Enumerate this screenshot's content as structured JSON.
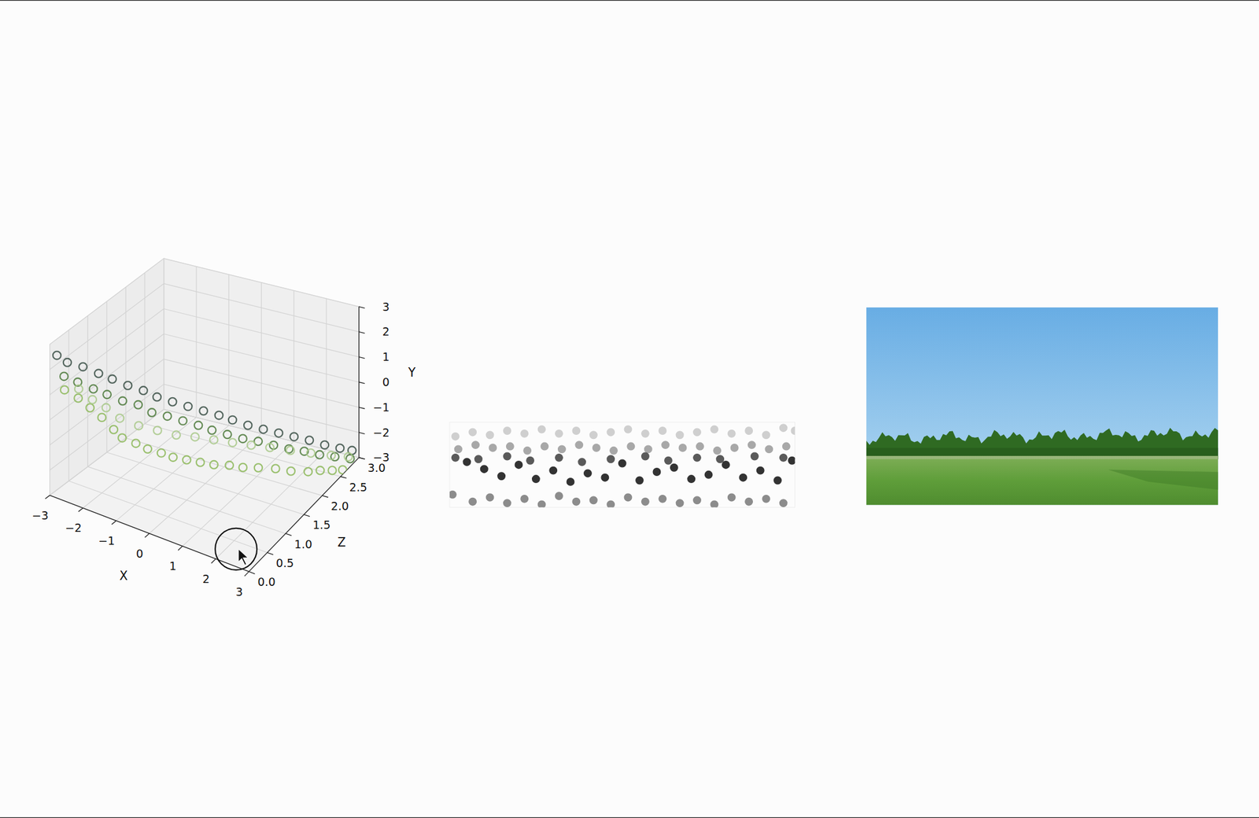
{
  "chart_data": [
    {
      "type": "scatter3d",
      "xlabel": "X",
      "ylabel": "Y",
      "zlabel": "Z",
      "xlim": [
        -3,
        3
      ],
      "ylim": [
        -3,
        3
      ],
      "zlim": [
        0,
        3
      ],
      "xticks": [
        {
          "value": -3,
          "label": "−3"
        },
        {
          "value": -2,
          "label": "−2"
        },
        {
          "value": -1,
          "label": "−1"
        },
        0,
        1,
        2,
        3
      ],
      "yticks": [
        {
          "value": -3,
          "label": "−3"
        },
        {
          "value": -2,
          "label": "−2"
        },
        {
          "value": -1,
          "label": "−1"
        },
        0,
        1,
        2,
        3
      ],
      "zticks": [
        {
          "value": 0,
          "label": "0.0"
        },
        {
          "value": 0.5,
          "label": "0.5"
        },
        {
          "value": 1,
          "label": "1.0"
        },
        {
          "value": 1.5,
          "label": "1.5"
        },
        {
          "value": 2,
          "label": "2.0"
        },
        {
          "value": 2.5,
          "label": "2.5"
        },
        {
          "value": 3,
          "label": "3.0"
        }
      ],
      "grid": true,
      "series": [
        {
          "color": "#3a4f45",
          "marker": "circle-open",
          "x": [
            -2.9,
            -2.7,
            -2.4,
            -2.1,
            -1.8,
            -1.5,
            -1.2,
            -0.9,
            -0.6,
            -0.3,
            0.0,
            0.3,
            0.6,
            0.9,
            1.2,
            1.5,
            1.8,
            2.1,
            2.4,
            2.7,
            2.9
          ],
          "y": [
            2.5,
            2.2,
            2.0,
            1.7,
            1.5,
            1.2,
            0.95,
            0.7,
            0.45,
            0.2,
            -0.05,
            -0.3,
            -0.5,
            -0.8,
            -1.05,
            -1.3,
            -1.55,
            -1.8,
            -2.1,
            -2.35,
            -2.6
          ],
          "z": [
            0.1,
            0.2,
            0.35,
            0.5,
            0.6,
            0.75,
            0.9,
            1.0,
            1.15,
            1.3,
            1.45,
            1.6,
            1.7,
            1.85,
            2.0,
            2.15,
            2.3,
            2.45,
            2.6,
            2.75,
            2.9
          ]
        },
        {
          "color": "#4d7a3c",
          "marker": "circle-open",
          "x": [
            -2.8,
            -2.5,
            -2.2,
            -1.9,
            -1.6,
            -1.3,
            -1.0,
            -0.7,
            -0.4,
            -0.1,
            0.2,
            0.5,
            0.8,
            1.1,
            1.4,
            1.7,
            2.0,
            2.3,
            2.6,
            2.9
          ],
          "y": [
            1.6,
            1.4,
            1.1,
            0.9,
            0.6,
            0.4,
            0.1,
            -0.1,
            -0.35,
            -0.6,
            -0.8,
            -1.05,
            -1.3,
            -1.5,
            -1.75,
            -2.0,
            -2.2,
            -2.45,
            -2.65,
            -2.85
          ],
          "z": [
            0.2,
            0.3,
            0.45,
            0.55,
            0.7,
            0.85,
            0.95,
            1.1,
            1.25,
            1.4,
            1.5,
            1.65,
            1.8,
            1.95,
            2.1,
            2.25,
            2.4,
            2.55,
            2.7,
            2.85
          ]
        },
        {
          "color": "#8db85a",
          "marker": "circle-open",
          "x": [
            -2.9,
            -2.6,
            -2.3,
            -2.0,
            -1.7,
            -1.5,
            -1.2,
            -0.9,
            -0.6,
            -0.3,
            0.0,
            0.3,
            0.6,
            0.9,
            1.2,
            1.5,
            1.8,
            2.1,
            2.4,
            2.6,
            2.8,
            2.95
          ],
          "y": [
            0.9,
            0.6,
            0.3,
            0.0,
            -0.4,
            -0.7,
            -0.9,
            -1.05,
            -1.2,
            -1.3,
            -1.4,
            -1.5,
            -1.6,
            -1.7,
            -1.8,
            -1.9,
            -2.1,
            -2.3,
            -2.5,
            -2.6,
            -2.75,
            -2.9
          ],
          "z": [
            0.3,
            0.4,
            0.45,
            0.5,
            0.55,
            0.6,
            0.7,
            0.75,
            0.85,
            0.9,
            1.0,
            1.1,
            1.2,
            1.35,
            1.45,
            1.6,
            1.8,
            1.95,
            2.15,
            2.3,
            2.45,
            2.6
          ]
        },
        {
          "color": "#a9c98a",
          "marker": "circle-open",
          "x": [
            -2.7,
            -2.4,
            -2.1,
            -1.8,
            -1.4,
            -1.0,
            -0.6,
            -0.2,
            0.2,
            0.6,
            1.0,
            1.4,
            1.8,
            2.2,
            2.6,
            2.9
          ],
          "y": [
            0.8,
            0.4,
            0.1,
            -0.3,
            -0.6,
            -0.8,
            -1.0,
            -1.1,
            -1.25,
            -1.4,
            -1.55,
            -1.7,
            -1.95,
            -2.2,
            -2.45,
            -2.7
          ],
          "z": [
            0.5,
            0.6,
            0.7,
            0.8,
            0.95,
            1.1,
            1.25,
            1.4,
            1.55,
            1.7,
            1.85,
            2.0,
            2.2,
            2.4,
            2.6,
            2.8
          ]
        }
      ]
    },
    {
      "type": "scatter",
      "xlim": [
        -3,
        3
      ],
      "ylim": [
        -3,
        3
      ],
      "tick_labels": false,
      "series": [
        {
          "color": "#cfcfcf",
          "marker": "circle",
          "x": [
            -2.9,
            -2.6,
            -2.3,
            -2.0,
            -1.7,
            -1.4,
            -1.1,
            -0.8,
            -0.5,
            -0.2,
            0.1,
            0.4,
            0.7,
            1.0,
            1.3,
            1.6,
            1.9,
            2.2,
            2.5,
            2.8,
            3.0
          ],
          "y": [
            2.0,
            2.3,
            2.1,
            2.4,
            2.2,
            2.5,
            2.2,
            2.4,
            2.1,
            2.3,
            2.5,
            2.2,
            2.4,
            2.1,
            2.3,
            2.5,
            2.2,
            2.4,
            2.1,
            2.6,
            2.4
          ]
        },
        {
          "color": "#a8a8a8",
          "marker": "circle",
          "x": [
            -2.85,
            -2.55,
            -2.25,
            -1.95,
            -1.65,
            -1.35,
            -1.05,
            -0.75,
            -0.45,
            -0.15,
            0.15,
            0.45,
            0.75,
            1.05,
            1.35,
            1.65,
            1.95,
            2.25,
            2.55,
            2.85
          ],
          "y": [
            1.1,
            1.4,
            1.2,
            1.3,
            1.0,
            1.3,
            1.1,
            1.4,
            1.2,
            1.0,
            1.3,
            1.1,
            1.4,
            1.2,
            1.3,
            1.0,
            1.2,
            1.4,
            1.1,
            1.3
          ]
        },
        {
          "color": "#5a5a5a",
          "marker": "circle",
          "x": [
            -2.9,
            -2.5,
            -2.0,
            -1.6,
            -1.1,
            -0.7,
            -0.2,
            0.4,
            0.8,
            1.3,
            1.7,
            2.3,
            2.8
          ],
          "y": [
            0.5,
            0.4,
            0.6,
            0.3,
            0.5,
            0.2,
            0.4,
            0.6,
            0.3,
            0.5,
            0.4,
            0.6,
            0.5
          ]
        },
        {
          "color": "#333333",
          "marker": "circle",
          "x": [
            -2.7,
            -2.4,
            -2.1,
            -1.8,
            -1.5,
            -1.2,
            -0.9,
            -0.6,
            -0.3,
            0.0,
            0.3,
            0.6,
            0.9,
            1.2,
            1.5,
            1.8,
            2.1,
            2.4,
            2.7,
            2.95
          ],
          "y": [
            0.2,
            -0.3,
            -0.8,
            0.0,
            -1.0,
            -0.4,
            -1.2,
            -0.6,
            -0.9,
            0.1,
            -1.1,
            -0.5,
            -0.2,
            -1.0,
            -0.7,
            0.0,
            -0.9,
            -0.4,
            -1.1,
            0.3
          ]
        },
        {
          "color": "#8c8c8c",
          "marker": "circle",
          "x": [
            -2.95,
            -2.6,
            -2.3,
            -2.0,
            -1.7,
            -1.4,
            -1.1,
            -0.8,
            -0.5,
            -0.2,
            0.1,
            0.4,
            0.7,
            1.0,
            1.3,
            1.6,
            1.9,
            2.2,
            2.5,
            2.8
          ],
          "y": [
            -2.1,
            -2.6,
            -2.3,
            -2.7,
            -2.4,
            -2.8,
            -2.2,
            -2.6,
            -2.5,
            -2.8,
            -2.3,
            -2.6,
            -2.4,
            -2.7,
            -2.5,
            -2.8,
            -2.3,
            -2.6,
            -2.4,
            -2.7
          ]
        }
      ]
    }
  ]
}
